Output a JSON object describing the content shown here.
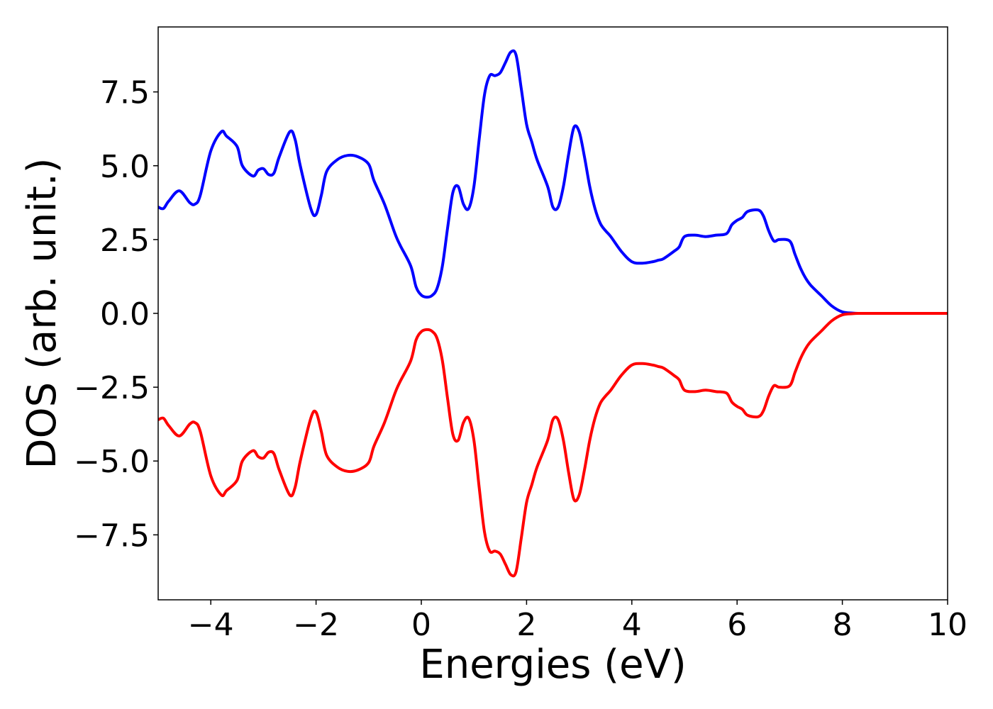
{
  "chart_data": {
    "type": "line",
    "title": "",
    "xlabel": "Energies (eV)",
    "ylabel": "DOS (arb. unit.)",
    "xlim": [
      -5,
      10
    ],
    "ylim": [
      -9.7,
      9.7
    ],
    "grid": false,
    "legend": "none",
    "x_ticks": [
      -4,
      -2,
      0,
      2,
      4,
      6,
      8,
      10
    ],
    "x_tick_labels": [
      "−4",
      "−2",
      "0",
      "2",
      "4",
      "6",
      "8",
      "10"
    ],
    "y_ticks": [
      7.5,
      5.0,
      2.5,
      0.0,
      -2.5,
      -5.0,
      -7.5
    ],
    "y_tick_labels": [
      "7.5",
      "5.0",
      "2.5",
      "0.0",
      "−2.5",
      "−5.0",
      "−7.5"
    ],
    "x": [
      -5.0,
      -4.9,
      -4.8,
      -4.6,
      -4.4,
      -4.3,
      -4.2,
      -4.0,
      -3.8,
      -3.7,
      -3.5,
      -3.4,
      -3.2,
      -3.1,
      -3.0,
      -2.9,
      -2.8,
      -2.7,
      -2.5,
      -2.4,
      -2.3,
      -2.1,
      -2.0,
      -1.9,
      -1.8,
      -1.6,
      -1.4,
      -1.2,
      -1.0,
      -0.9,
      -0.7,
      -0.5,
      -0.4,
      -0.2,
      -0.1,
      0.0,
      0.1,
      0.2,
      0.3,
      0.4,
      0.5,
      0.6,
      0.7,
      0.8,
      0.9,
      1.0,
      1.1,
      1.2,
      1.3,
      1.4,
      1.5,
      1.6,
      1.7,
      1.8,
      1.9,
      2.0,
      2.1,
      2.2,
      2.4,
      2.5,
      2.6,
      2.7,
      2.8,
      2.9,
      3.0,
      3.1,
      3.2,
      3.3,
      3.4,
      3.5,
      3.6,
      3.8,
      4.0,
      4.2,
      4.4,
      4.5,
      4.6,
      4.8,
      4.9,
      5.0,
      5.2,
      5.4,
      5.6,
      5.8,
      5.9,
      6.0,
      6.1,
      6.2,
      6.4,
      6.5,
      6.6,
      6.7,
      6.8,
      7.0,
      7.1,
      7.2,
      7.3,
      7.4,
      7.6,
      7.8,
      8.0,
      8.2,
      8.3,
      8.5,
      9.0,
      10.0
    ],
    "series": [
      {
        "color": "#0000ff",
        "values": [
          3.6,
          3.55,
          3.8,
          4.15,
          3.75,
          3.7,
          4.0,
          5.5,
          6.15,
          6.0,
          5.65,
          5.0,
          4.65,
          4.85,
          4.9,
          4.7,
          4.75,
          5.3,
          6.15,
          5.9,
          5.0,
          3.55,
          3.35,
          4.0,
          4.8,
          5.2,
          5.35,
          5.3,
          5.05,
          4.5,
          3.7,
          2.7,
          2.3,
          1.6,
          0.9,
          0.62,
          0.55,
          0.6,
          0.85,
          1.6,
          2.9,
          4.1,
          4.3,
          3.7,
          3.55,
          4.3,
          5.9,
          7.4,
          8.05,
          8.05,
          8.15,
          8.5,
          8.85,
          8.75,
          7.6,
          6.4,
          5.8,
          5.2,
          4.3,
          3.6,
          3.6,
          4.3,
          5.4,
          6.3,
          6.15,
          5.3,
          4.3,
          3.55,
          3.05,
          2.8,
          2.6,
          2.1,
          1.75,
          1.7,
          1.75,
          1.8,
          1.85,
          2.1,
          2.25,
          2.6,
          2.65,
          2.6,
          2.65,
          2.7,
          3.0,
          3.15,
          3.25,
          3.45,
          3.5,
          3.3,
          2.8,
          2.45,
          2.5,
          2.45,
          2.0,
          1.55,
          1.2,
          0.95,
          0.6,
          0.25,
          0.05,
          0.01,
          0.0,
          0.0,
          0.0,
          0.0
        ]
      },
      {
        "color": "#ff0000",
        "values": [
          -3.6,
          -3.55,
          -3.8,
          -4.15,
          -3.75,
          -3.7,
          -4.0,
          -5.5,
          -6.15,
          -6.0,
          -5.65,
          -5.0,
          -4.65,
          -4.85,
          -4.9,
          -4.7,
          -4.75,
          -5.3,
          -6.15,
          -5.9,
          -5.0,
          -3.55,
          -3.35,
          -4.0,
          -4.8,
          -5.2,
          -5.35,
          -5.3,
          -5.05,
          -4.5,
          -3.7,
          -2.7,
          -2.3,
          -1.6,
          -0.9,
          -0.62,
          -0.55,
          -0.6,
          -0.85,
          -1.6,
          -2.9,
          -4.1,
          -4.3,
          -3.7,
          -3.55,
          -4.3,
          -5.9,
          -7.4,
          -8.05,
          -8.05,
          -8.15,
          -8.5,
          -8.85,
          -8.75,
          -7.6,
          -6.4,
          -5.8,
          -5.2,
          -4.3,
          -3.6,
          -3.6,
          -4.3,
          -5.4,
          -6.3,
          -6.15,
          -5.3,
          -4.3,
          -3.55,
          -3.05,
          -2.8,
          -2.6,
          -2.1,
          -1.75,
          -1.7,
          -1.75,
          -1.8,
          -1.85,
          -2.1,
          -2.25,
          -2.6,
          -2.65,
          -2.6,
          -2.65,
          -2.7,
          -3.0,
          -3.15,
          -3.25,
          -3.45,
          -3.5,
          -3.3,
          -2.8,
          -2.45,
          -2.5,
          -2.45,
          -2.0,
          -1.55,
          -1.2,
          -0.95,
          -0.6,
          -0.25,
          -0.05,
          -0.01,
          0.0,
          0.0,
          0.0,
          0.0
        ]
      }
    ]
  }
}
